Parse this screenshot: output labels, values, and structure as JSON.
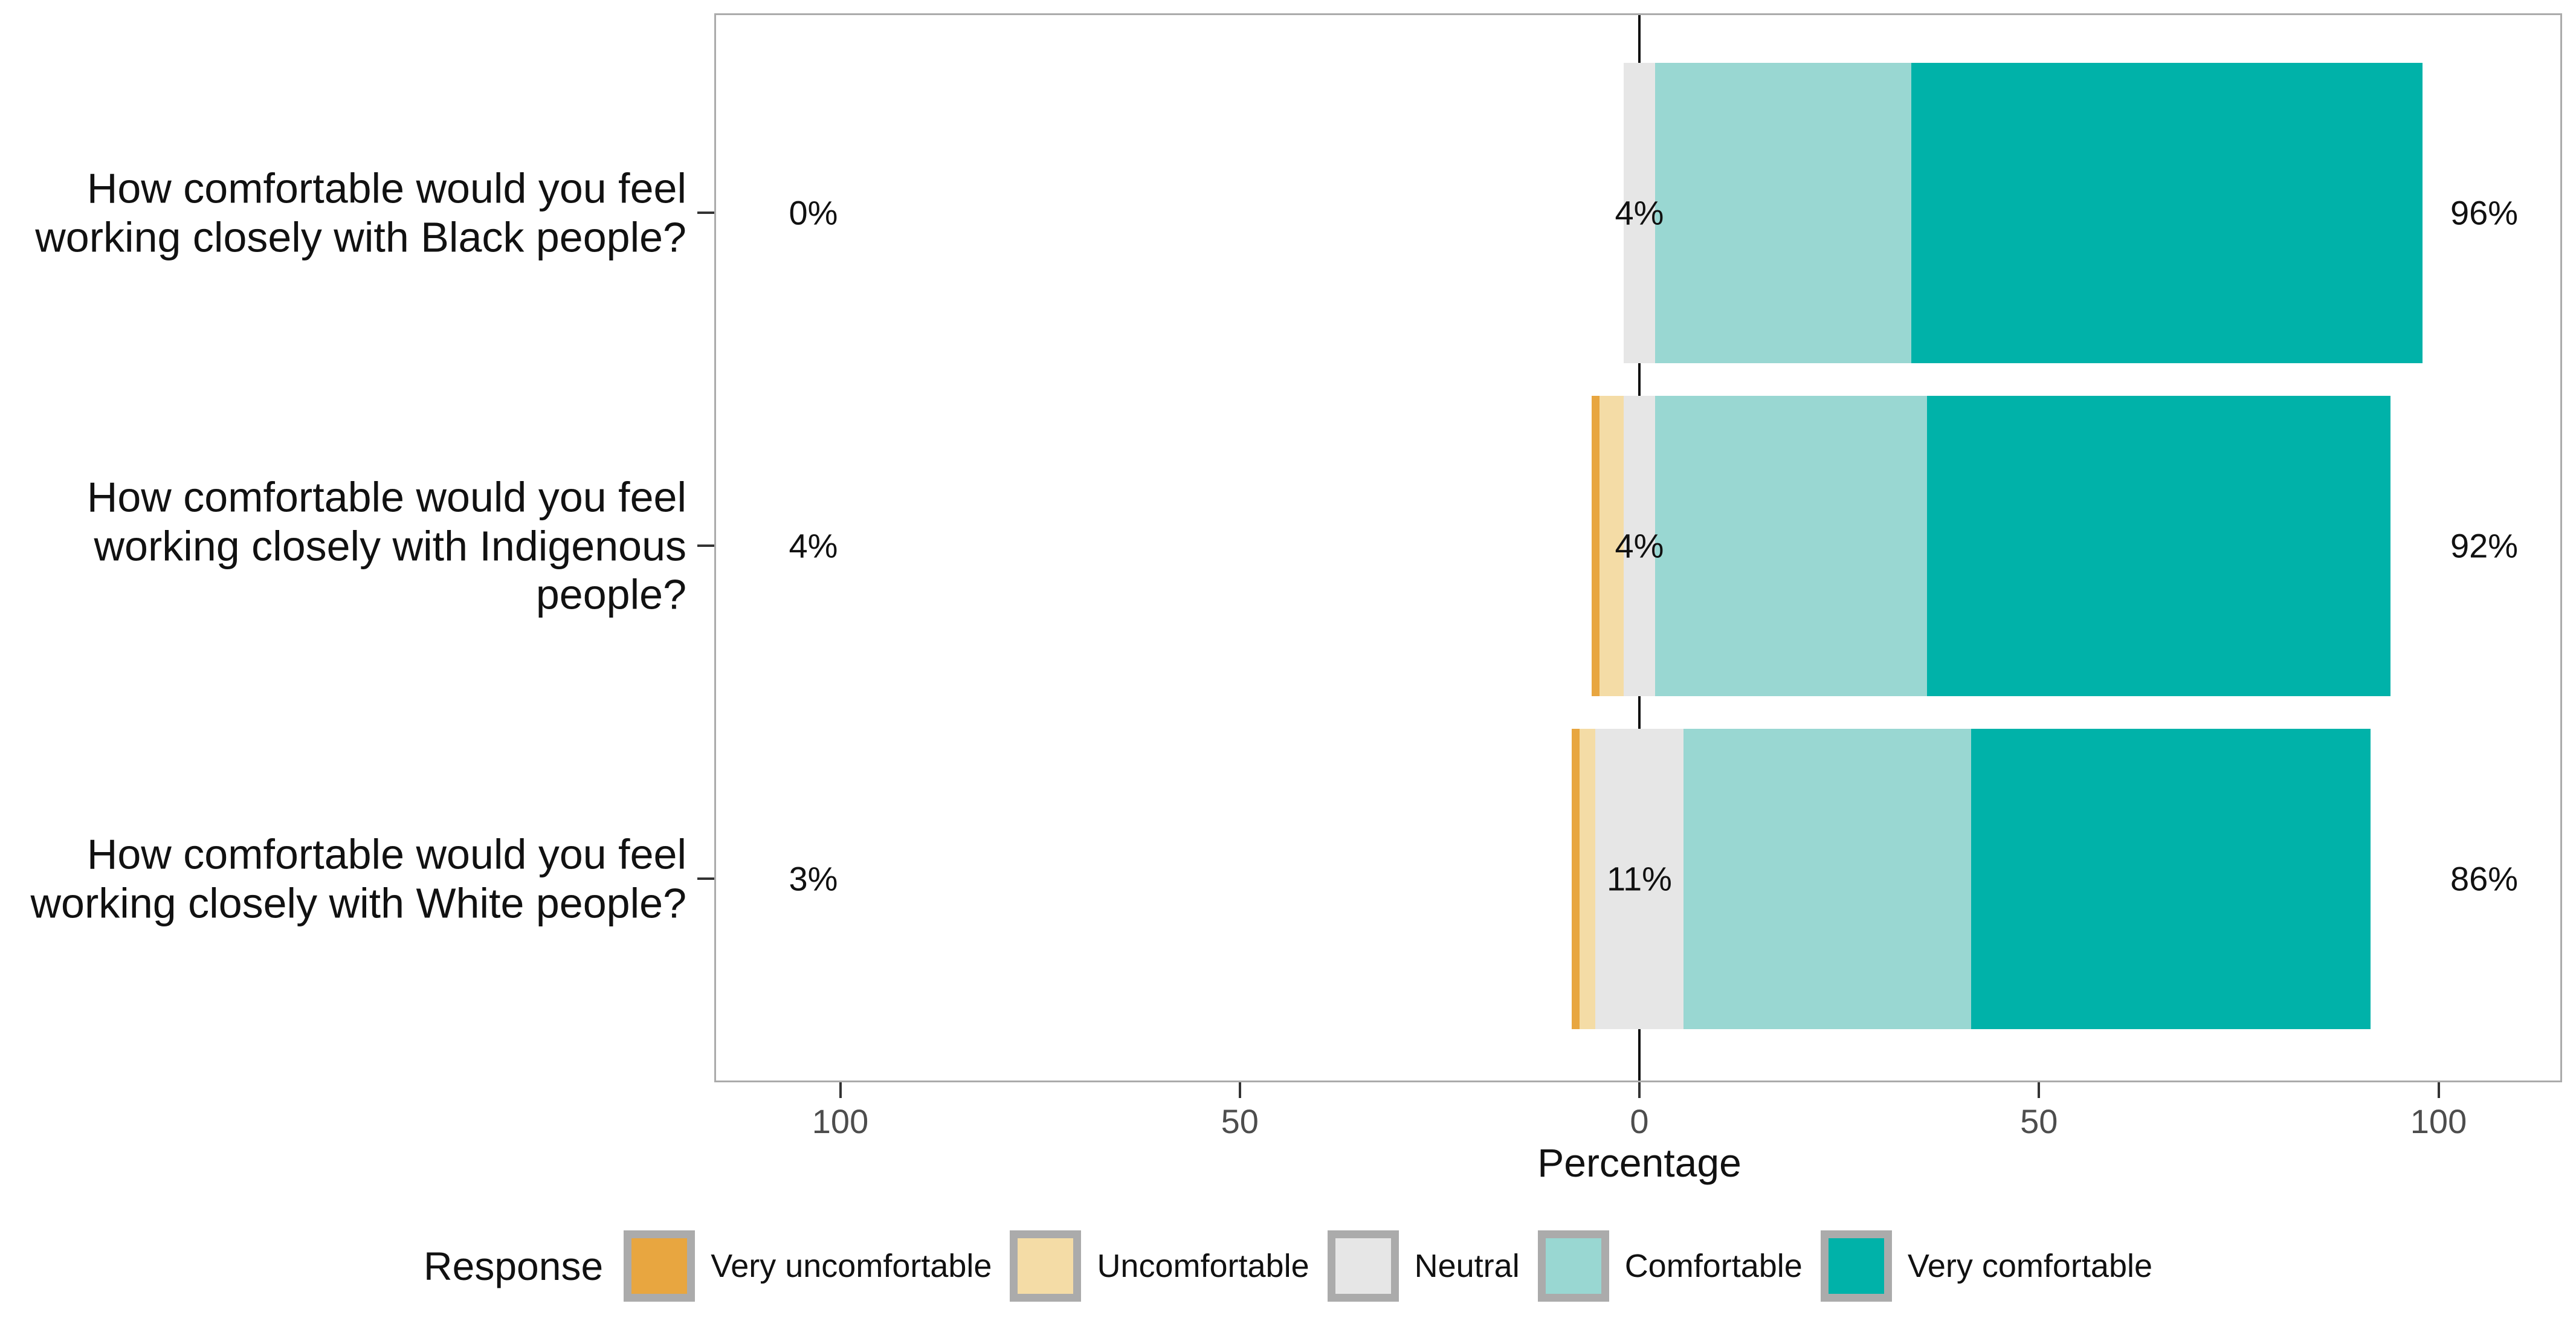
{
  "chart_data": {
    "type": "bar",
    "variant": "horizontal-diverging-stacked-likert",
    "title": "",
    "xlabel": "Percentage",
    "axis": {
      "tick_values": [
        -100,
        -50,
        0,
        50,
        100
      ],
      "tick_labels": [
        "100",
        "50",
        "0",
        "50",
        "100"
      ],
      "range": [
        -115.7,
        115.7
      ],
      "grid": false,
      "zero_reference_line": true
    },
    "layout_hint": "neutral segment centered on zero; uncomfortable categories extend left, comfortable categories extend right; totals annotated at left, center and right",
    "series": [
      "Very uncomfortable",
      "Uncomfortable",
      "Neutral",
      "Comfortable",
      "Very comfortable"
    ],
    "series_colors": [
      "#E8A640",
      "#F4DCA6",
      "#E6E6E6",
      "#99D7D2",
      "#00B2A9"
    ],
    "rows": [
      {
        "category": "How comfortable would you feel\nworking closely with Black people?",
        "segments": [
          0,
          0,
          4,
          32,
          64
        ],
        "labels": {
          "negative": "0%",
          "neutral": "4%",
          "positive": "96%"
        }
      },
      {
        "category": "How comfortable would you feel\nworking closely with Indigenous\npeople?",
        "segments": [
          1,
          3,
          4,
          34,
          58
        ],
        "labels": {
          "negative": "4%",
          "neutral": "4%",
          "positive": "92%"
        }
      },
      {
        "category": "How comfortable would you feel\nworking closely with White people?",
        "segments": [
          1,
          2,
          11,
          36,
          50
        ],
        "labels": {
          "negative": "3%",
          "neutral": "11%",
          "positive": "86%"
        }
      }
    ]
  },
  "legend": {
    "title": "Response",
    "items": [
      {
        "label": "Very uncomfortable",
        "color": "#E8A640"
      },
      {
        "label": "Uncomfortable",
        "color": "#F4DCA6"
      },
      {
        "label": "Neutral",
        "color": "#E6E6E6"
      },
      {
        "label": "Comfortable",
        "color": "#99D7D2"
      },
      {
        "label": "Very comfortable",
        "color": "#00B2A9"
      }
    ]
  },
  "colors": {
    "panel_border": "#ABABAB",
    "zero_line": "#111111",
    "axis_tick": "#333333",
    "axis_tick_text": "#4D4D4D",
    "text": "#111111"
  }
}
